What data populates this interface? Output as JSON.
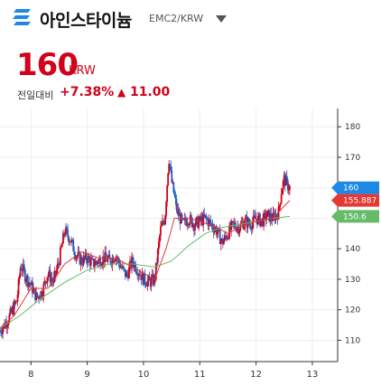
{
  "header": {
    "name": "아인스타이늄",
    "pair": "EMC2/KRW",
    "logo_icon": "einsteinium-logo-icon",
    "dropdown_icon": "chevron-down-icon"
  },
  "price": {
    "value": "160",
    "unit": "KRW",
    "change_label": "전일대비",
    "change_percent": "+7.38%",
    "change_arrow": "▲",
    "change_value": "11.00"
  },
  "colors": {
    "up": "#d0021b",
    "down": "#1f5fbf",
    "ma_short": "#e53935",
    "ma_long": "#66bb6a",
    "current_tag": "#1e88e5",
    "ma_short_tag": "#e53935",
    "ma_long_tag": "#66bb6a"
  },
  "chart_data": {
    "type": "candlestick",
    "x_ticks": [
      "8",
      "9",
      "10",
      "11",
      "12",
      "13"
    ],
    "y_ticks": [
      "110",
      "120",
      "130",
      "140",
      "150",
      "160",
      "170",
      "180"
    ],
    "ylim": [
      103,
      186
    ],
    "xlim": [
      7.45,
      13.45
    ],
    "tags": [
      {
        "label": "160",
        "value": 160,
        "kind": "current"
      },
      {
        "label": "155.887",
        "value": 155.887,
        "kind": "ma_short"
      },
      {
        "label": "150.6",
        "value": 150.6,
        "kind": "ma_long"
      }
    ],
    "close_series": [
      [
        7.45,
        113
      ],
      [
        7.6,
        117
      ],
      [
        7.75,
        123
      ],
      [
        7.82,
        135
      ],
      [
        7.9,
        131
      ],
      [
        8.0,
        128
      ],
      [
        8.1,
        124
      ],
      [
        8.2,
        126
      ],
      [
        8.3,
        132
      ],
      [
        8.4,
        129
      ],
      [
        8.5,
        136
      ],
      [
        8.6,
        146
      ],
      [
        8.7,
        143
      ],
      [
        8.8,
        138
      ],
      [
        8.9,
        136
      ],
      [
        9.0,
        137
      ],
      [
        9.1,
        135
      ],
      [
        9.2,
        136
      ],
      [
        9.3,
        137
      ],
      [
        9.4,
        136
      ],
      [
        9.5,
        138
      ],
      [
        9.6,
        134
      ],
      [
        9.7,
        131
      ],
      [
        9.8,
        136
      ],
      [
        9.9,
        133
      ],
      [
        10.0,
        130
      ],
      [
        10.1,
        129
      ],
      [
        10.2,
        130
      ],
      [
        10.3,
        146
      ],
      [
        10.38,
        150
      ],
      [
        10.45,
        170
      ],
      [
        10.5,
        162
      ],
      [
        10.6,
        152
      ],
      [
        10.7,
        148
      ],
      [
        10.8,
        150
      ],
      [
        10.9,
        148
      ],
      [
        11.0,
        149
      ],
      [
        11.1,
        150
      ],
      [
        11.2,
        148
      ],
      [
        11.3,
        146
      ],
      [
        11.4,
        142
      ],
      [
        11.5,
        145
      ],
      [
        11.6,
        148
      ],
      [
        11.7,
        147
      ],
      [
        11.8,
        149
      ],
      [
        11.9,
        148
      ],
      [
        12.0,
        150
      ],
      [
        12.1,
        149
      ],
      [
        12.2,
        151
      ],
      [
        12.3,
        150
      ],
      [
        12.4,
        152
      ],
      [
        12.45,
        159
      ],
      [
        12.5,
        163
      ],
      [
        12.55,
        161
      ],
      [
        12.6,
        160
      ]
    ],
    "ma_short_series": [
      [
        7.45,
        114
      ],
      [
        7.7,
        118
      ],
      [
        8.0,
        127
      ],
      [
        8.3,
        127
      ],
      [
        8.6,
        135
      ],
      [
        8.9,
        139
      ],
      [
        9.2,
        137
      ],
      [
        9.5,
        137
      ],
      [
        9.8,
        134
      ],
      [
        10.0,
        132
      ],
      [
        10.2,
        130
      ],
      [
        10.4,
        140
      ],
      [
        10.55,
        150
      ],
      [
        10.8,
        150
      ],
      [
        11.0,
        149
      ],
      [
        11.3,
        147
      ],
      [
        11.5,
        145
      ],
      [
        11.7,
        147
      ],
      [
        12.0,
        149
      ],
      [
        12.3,
        150
      ],
      [
        12.5,
        154
      ],
      [
        12.6,
        155.887
      ]
    ],
    "ma_long_series": [
      [
        7.45,
        114
      ],
      [
        7.8,
        118
      ],
      [
        8.2,
        124
      ],
      [
        8.6,
        129
      ],
      [
        9.0,
        133
      ],
      [
        9.4,
        135
      ],
      [
        9.8,
        135
      ],
      [
        10.2,
        134
      ],
      [
        10.5,
        136
      ],
      [
        10.8,
        141
      ],
      [
        11.1,
        145
      ],
      [
        11.4,
        147
      ],
      [
        11.7,
        148
      ],
      [
        12.0,
        149
      ],
      [
        12.3,
        150
      ],
      [
        12.6,
        150.6
      ]
    ]
  }
}
